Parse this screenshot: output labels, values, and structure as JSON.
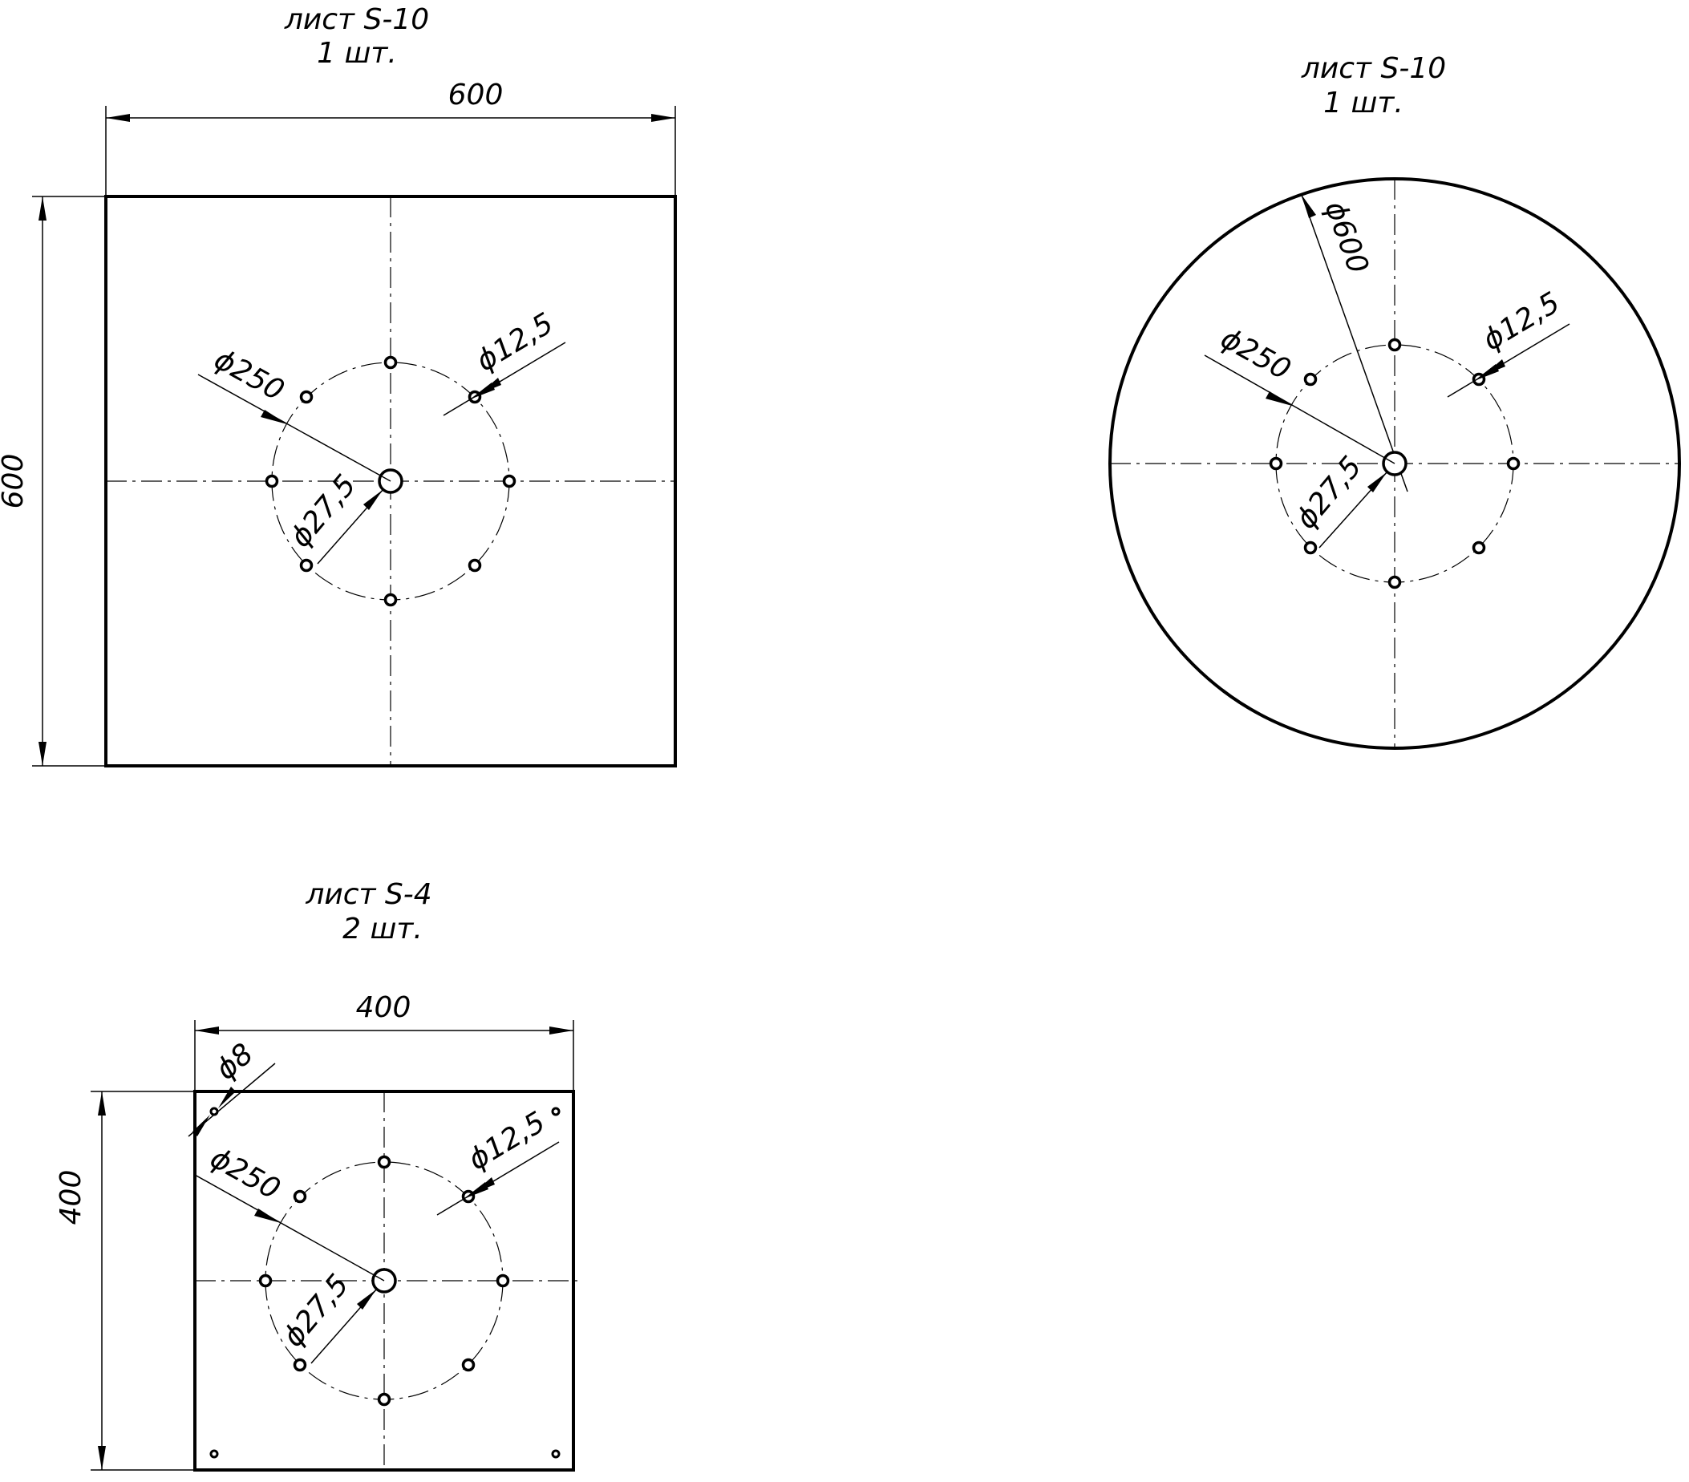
{
  "parts": {
    "square_600": {
      "title_line1": "лист S-10",
      "title_line2": "1 шт.",
      "width_dim": "600",
      "height_dim": "600",
      "bolt_circle_dim": "ϕ250",
      "bolt_hole_dim": "ϕ12,5",
      "center_hole_dim": "ϕ27,5"
    },
    "disk_600": {
      "title_line1": "лист S-10",
      "title_line2": "1 шт.",
      "outer_dim": "ϕ600",
      "bolt_circle_dim": "ϕ250",
      "bolt_hole_dim": "ϕ12,5",
      "center_hole_dim": "ϕ27,5"
    },
    "square_400": {
      "title_line1": "лист S-4",
      "title_line2": "2 шт.",
      "width_dim": "400",
      "height_dim": "400",
      "corner_hole_dim": "ϕ8",
      "bolt_circle_dim": "ϕ250",
      "bolt_hole_dim": "ϕ12,5",
      "center_hole_dim": "ϕ27,5"
    }
  }
}
